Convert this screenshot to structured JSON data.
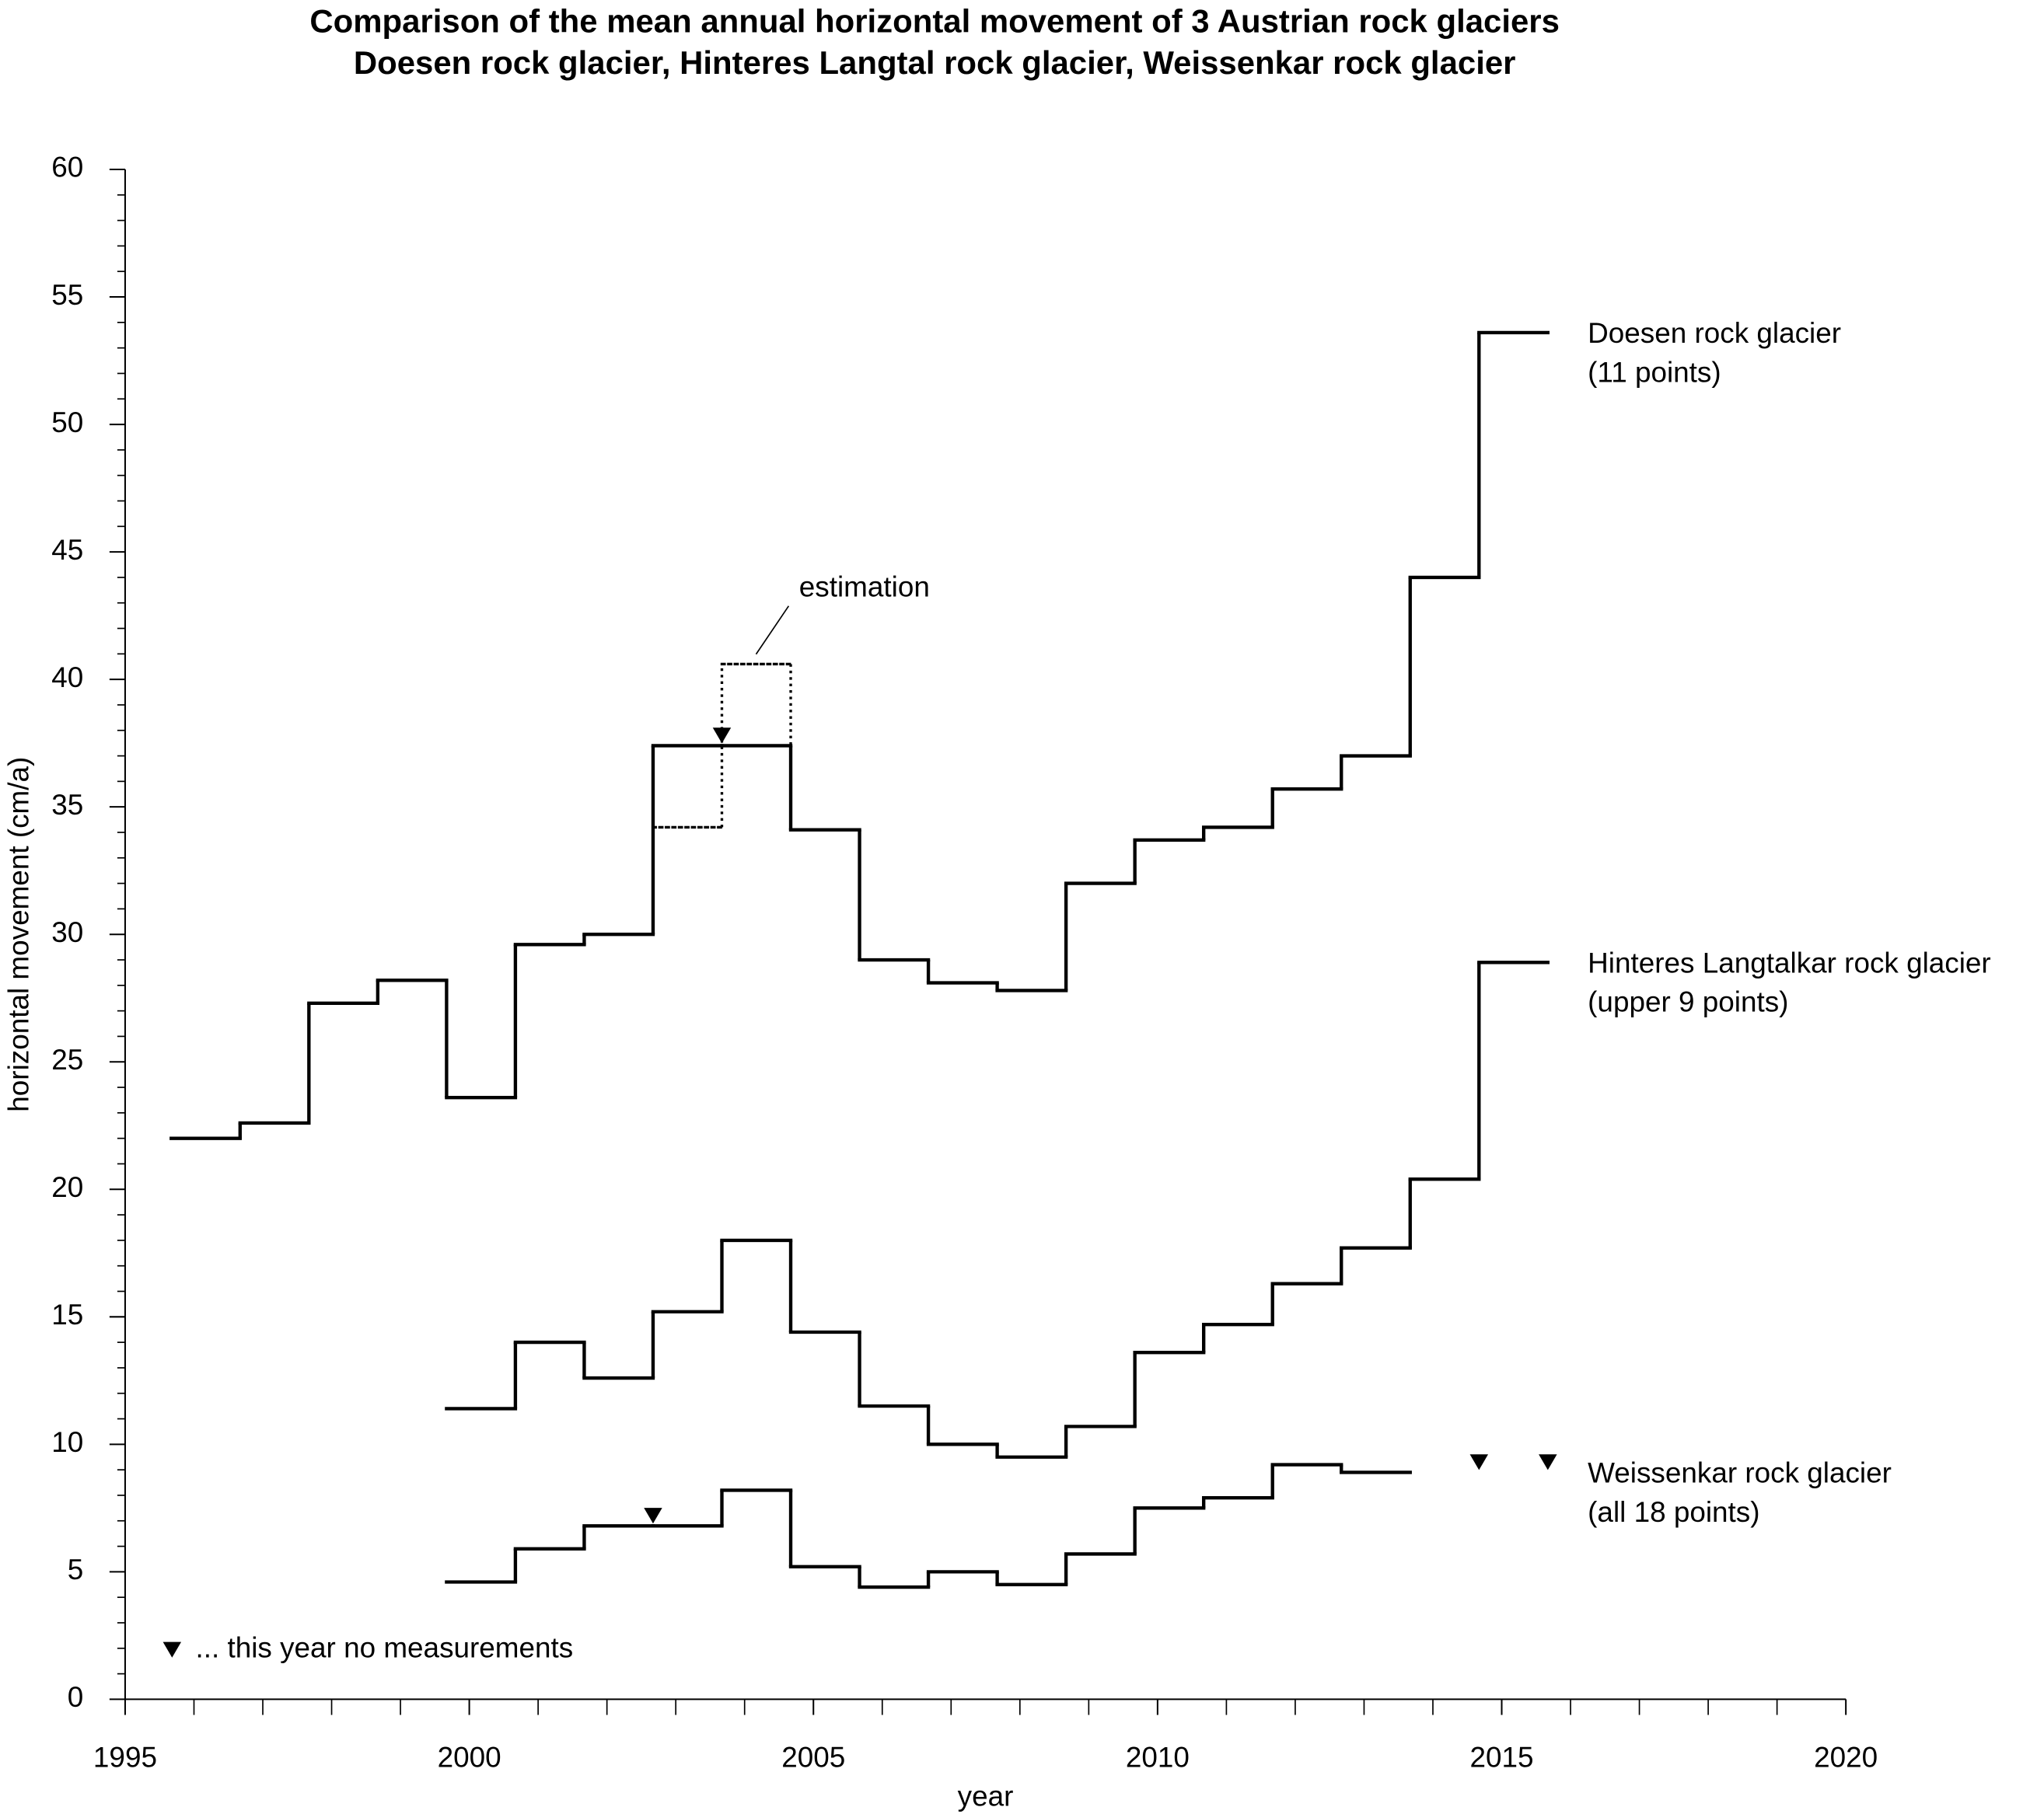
{
  "chart_data": {
    "type": "step",
    "title": "Comparison of the mean annual horizontal movement of 3 Austrian rock glaciers",
    "subtitle": "Doesen rock glacier, Hinteres Langtal rock glacier, Weissenkar rock glacier",
    "xlabel": "year",
    "ylabel": "horizontal movement (cm/a)",
    "xlim": [
      1995,
      2020
    ],
    "ylim": [
      0,
      60
    ],
    "xticks": [
      1995,
      2000,
      2005,
      2010,
      2015,
      2020
    ],
    "yticks": [
      0,
      5,
      10,
      15,
      20,
      25,
      30,
      35,
      40,
      45,
      50,
      55,
      60
    ],
    "x_minor_ticks": [
      1996,
      1997,
      1998,
      1999,
      2001,
      2002,
      2003,
      2004,
      2006,
      2007,
      2008,
      2009,
      2011,
      2012,
      2013,
      2014,
      2016,
      2017,
      2018,
      2019
    ],
    "y_minor_ticks": [
      1,
      2,
      3,
      4,
      6,
      7,
      8,
      9,
      11,
      12,
      13,
      14,
      16,
      17,
      18,
      19,
      21,
      22,
      23,
      24,
      26,
      27,
      28,
      29,
      31,
      32,
      33,
      34,
      36,
      37,
      38,
      39,
      41,
      42,
      43,
      44,
      46,
      47,
      48,
      49,
      51,
      52,
      53,
      54,
      56,
      57,
      58,
      59
    ],
    "series": [
      {
        "name": "Doesen rock glacier",
        "description": "(11 points)",
        "color": "#000000",
        "bins": [
          1995.67,
          1996.67,
          1997.67,
          1998.67,
          1999.67,
          2000.67,
          2001.67,
          2002.67,
          2003.67,
          2004.67,
          2005.67,
          2006.67,
          2007.67,
          2008.67,
          2009.67,
          2010.67,
          2011.67,
          2012.67,
          2013.67,
          2014.67,
          2015.67
        ],
        "values": [
          22.0,
          22.6,
          27.3,
          28.2,
          23.6,
          29.6,
          30.0,
          37.4,
          37.4,
          34.1,
          29.0,
          28.1,
          27.8,
          32.0,
          33.7,
          34.2,
          35.7,
          37.0,
          44.0,
          53.6
        ]
      },
      {
        "name": "Hinteres Langtalkar rock glacier",
        "description": "(upper 9 points)",
        "color": "#000000",
        "bins": [
          1999.67,
          2000.67,
          2001.67,
          2002.67,
          2003.67,
          2004.67,
          2005.67,
          2006.67,
          2007.67,
          2008.67,
          2009.67,
          2010.67,
          2011.67,
          2012.67,
          2013.67,
          2014.67,
          2015.67
        ],
        "values": [
          11.4,
          14.0,
          12.6,
          15.2,
          18.0,
          14.4,
          11.5,
          10.0,
          9.5,
          10.7,
          13.6,
          14.7,
          16.3,
          17.7,
          20.4,
          28.9
        ]
      },
      {
        "name": "Weissenkar rock glacier",
        "description": "(all 18 points)",
        "color": "#000000",
        "bins": [
          1999.67,
          2000.67,
          2001.67,
          2002.67,
          2003.67,
          2004.67,
          2005.67,
          2006.67,
          2007.67,
          2008.67,
          2009.67,
          2010.67,
          2011.67,
          2012.67,
          2013.67
        ],
        "values": [
          4.6,
          5.9,
          6.8,
          6.8,
          8.2,
          5.2,
          4.4,
          5.0,
          4.5,
          5.7,
          7.5,
          7.9,
          9.2,
          8.9
        ]
      }
    ],
    "estimation": {
      "label": "estimation",
      "color": "#000000",
      "bins": [
        2002.67,
        2003.67,
        2004.67
      ],
      "values": [
        34.2,
        40.6
      ]
    },
    "no_measurement": {
      "label": "... this year no measurements",
      "points": [
        {
          "x": 2003.67,
          "y": 37.8
        },
        {
          "x": 2002.67,
          "y": 7.2
        },
        {
          "x": 2014.67,
          "y": 9.3
        },
        {
          "x": 2015.67,
          "y": 9.3
        }
      ]
    }
  }
}
